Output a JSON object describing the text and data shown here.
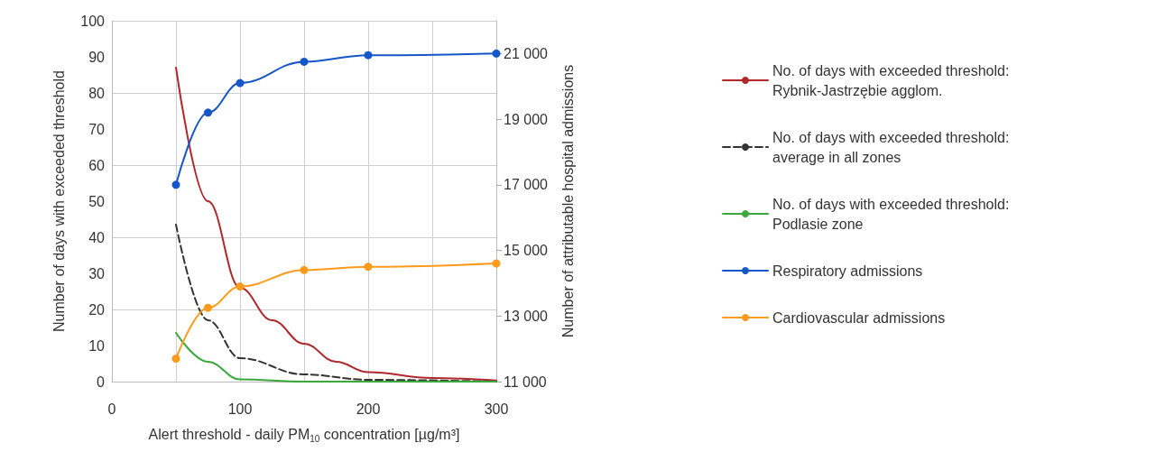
{
  "chart_data": {
    "type": "line",
    "xlabel": "Alert threshold - daily PM$_{10}$ concentration [µg/m³]",
    "ylabel": "Number of days with exceeded threshold",
    "y2label": "Number of attributable hospital admissions",
    "xlim": [
      0,
      300
    ],
    "xticks": [
      0,
      100,
      200,
      300
    ],
    "ylim": [
      0,
      100
    ],
    "yticks": [
      0,
      10,
      20,
      30,
      40,
      50,
      60,
      70,
      80,
      90,
      100
    ],
    "y2lim": [
      11000,
      22000
    ],
    "y2ticks": [
      {
        "value": 11000,
        "label": "11 000"
      },
      {
        "value": 13000,
        "label": "13 000"
      },
      {
        "value": 15000,
        "label": "15 000"
      },
      {
        "value": 17000,
        "label": "17 000"
      },
      {
        "value": 19000,
        "label": "19 000"
      },
      {
        "value": 21000,
        "label": "21 000"
      }
    ],
    "grid": true,
    "legend": "right",
    "series": [
      {
        "name": "No. of days with exceeded threshold: Rybnik-Jastrzębie agglom.",
        "color": "#b0282c",
        "marker": "none",
        "line_style": "solid",
        "x": [
          50,
          75,
          100,
          125,
          150,
          175,
          200,
          250,
          300
        ],
        "values": [
          87,
          50,
          26,
          17,
          10.5,
          5.5,
          2.6,
          1,
          0.3
        ]
      },
      {
        "name": "No. of days with exceeded threshold: average in all zones",
        "color": "#333333",
        "marker": "none",
        "line_style": "dashed",
        "x": [
          50,
          75,
          100,
          150,
          200,
          300
        ],
        "values": [
          43.5,
          17,
          6.5,
          2,
          0.5,
          0
        ]
      },
      {
        "name": "No. of days with exceeded threshold: Podlasie zone",
        "color": "#3aa83a",
        "marker": "none",
        "line_style": "solid",
        "x": [
          50,
          75,
          100,
          150,
          200,
          300
        ],
        "values": [
          13.5,
          5.5,
          0.6,
          0,
          0,
          0
        ]
      },
      {
        "name": "Respiratory admissions",
        "color": "#1556c8",
        "marker": "circle",
        "line_style": "solid",
        "axis": "y2",
        "x": [
          50,
          75,
          100,
          150,
          200,
          300
        ],
        "values": [
          17000,
          19200,
          20100,
          20750,
          20950,
          21000
        ]
      },
      {
        "name": "Cardiovascular admissions",
        "color": "#ff9a1a",
        "marker": "circle",
        "line_style": "solid",
        "axis": "y2",
        "x": [
          50,
          75,
          100,
          150,
          200,
          300
        ],
        "values": [
          11700,
          13250,
          13900,
          14400,
          14500,
          14600
        ]
      }
    ]
  }
}
